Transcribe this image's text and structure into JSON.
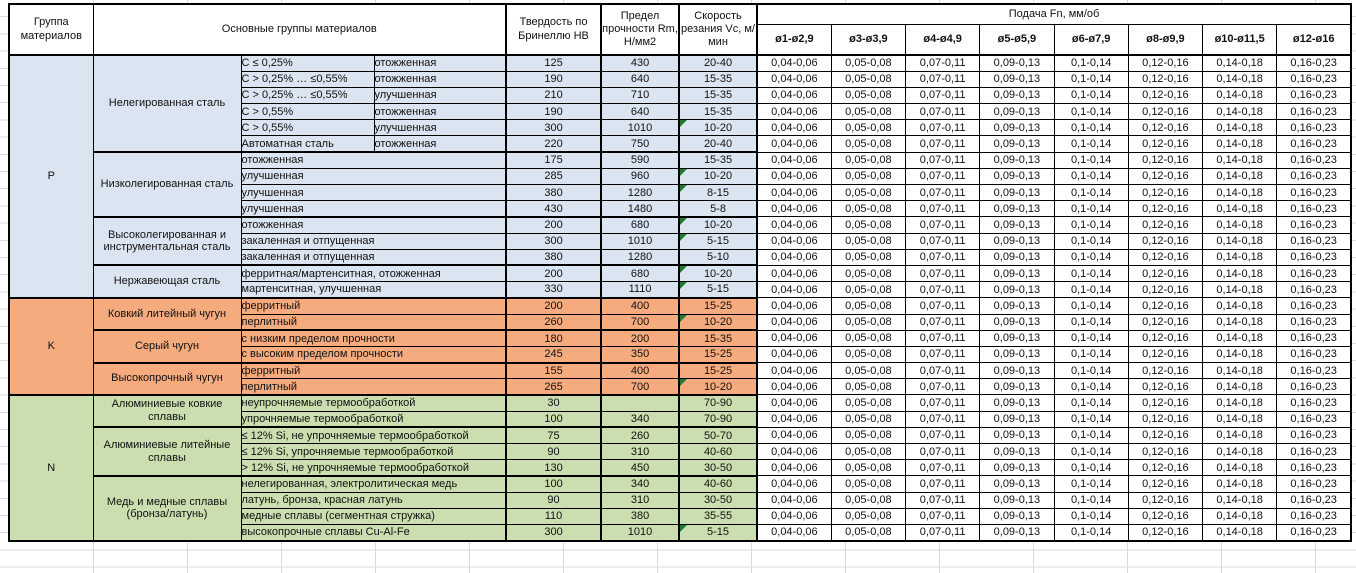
{
  "colors": {
    "section_blue": "#DBE5F1",
    "section_orange": "#F5AB7E",
    "section_green": "#CADEB0",
    "note_triangle": "#1E7B34",
    "grid_border": "#000000",
    "sheet_gridline": "#D9D9D9"
  },
  "table": {
    "header": {
      "group": "Группа материалов",
      "main_groups": "Основные группы материалов",
      "hardness": "Твердость по Бринеллю НВ",
      "strength": "Предел прочности Rm, Н/мм2",
      "speed": "Скорость резания Vc, м/мин",
      "feed": "Подача Fn, мм/об",
      "feed_cols": [
        "ø1-ø2,9",
        "ø3-ø3,9",
        "ø4-ø4,9",
        "ø5-ø5,9",
        "ø6-ø7,9",
        "ø8-ø9,9",
        "ø10-ø11,5",
        "ø12-ø16"
      ]
    },
    "feed_values": [
      "0,04-0,06",
      "0,05-0,08",
      "0,07-0,11",
      "0,09-0,13",
      "0,1-0,14",
      "0,12-0,16",
      "0,14-0,18",
      "0,16-0,23"
    ],
    "sections": [
      {
        "group": "P",
        "color": "#DBE5F1",
        "blocks": [
          {
            "name": "Нелегированная сталь",
            "rows": [
              {
                "m": "C ≤ 0,25%",
                "m2": "отожженная",
                "hb": "125",
                "rm": "430",
                "vc": "20-40",
                "note": false
              },
              {
                "m": "C > 0,25% … ≤0,55%",
                "m2": "отожженная",
                "hb": "190",
                "rm": "640",
                "vc": "15-35",
                "note": false
              },
              {
                "m": "C > 0,25% … ≤0,55%",
                "m2": "улучшенная",
                "hb": "210",
                "rm": "710",
                "vc": "15-35",
                "note": false
              },
              {
                "m": "C > 0,55%",
                "m2": "отожженная",
                "hb": "190",
                "rm": "640",
                "vc": "15-35",
                "note": false
              },
              {
                "m": "C > 0,55%",
                "m2": "улучшенная",
                "hb": "300",
                "rm": "1010",
                "vc": "10-20",
                "note": true
              },
              {
                "m": "Автоматная сталь",
                "m2": "отожженная",
                "hb": "220",
                "rm": "750",
                "vc": "20-40",
                "note": false
              }
            ]
          },
          {
            "name": "Низколегированная сталь",
            "rows": [
              {
                "m": "отожженная",
                "hb": "175",
                "rm": "590",
                "vc": "15-35",
                "note": false
              },
              {
                "m": "улучшенная",
                "hb": "285",
                "rm": "960",
                "vc": "10-20",
                "note": true
              },
              {
                "m": "улучшенная",
                "hb": "380",
                "rm": "1280",
                "vc": "8-15",
                "note": true
              },
              {
                "m": "улучшенная",
                "hb": "430",
                "rm": "1480",
                "vc": "5-8",
                "note": false
              }
            ]
          },
          {
            "name": "Высоколегированная и инструментальная сталь",
            "rows": [
              {
                "m": "отожженная",
                "hb": "200",
                "rm": "680",
                "vc": "10-20",
                "note": true
              },
              {
                "m": "закаленная и отпущенная",
                "hb": "300",
                "rm": "1010",
                "vc": "5-15",
                "note": true
              },
              {
                "m": "закаленная и отпущенная",
                "hb": "380",
                "rm": "1280",
                "vc": "5-10",
                "note": false
              }
            ]
          },
          {
            "name": "Нержавеющая сталь",
            "rows": [
              {
                "m": "ферритная/мартенситная, отожженная",
                "hb": "200",
                "rm": "680",
                "vc": "10-20",
                "note": true
              },
              {
                "m": "мартенситная, улучшенная",
                "hb": "330",
                "rm": "1110",
                "vc": "5-15",
                "note": true
              }
            ]
          }
        ]
      },
      {
        "group": "K",
        "color": "#F5AB7E",
        "blocks": [
          {
            "name": "Ковкий литейный чугун",
            "rows": [
              {
                "m": "ферритный",
                "hb": "200",
                "rm": "400",
                "vc": "15-25",
                "note": false
              },
              {
                "m": "перлитный",
                "hb": "260",
                "rm": "700",
                "vc": "10-20",
                "note": true
              }
            ]
          },
          {
            "name": "Серый чугун",
            "rows": [
              {
                "m": "с низким пределом прочности",
                "hb": "180",
                "rm": "200",
                "vc": "15-35",
                "note": false
              },
              {
                "m": "с высоким пределом прочности",
                "hb": "245",
                "rm": "350",
                "vc": "15-25",
                "note": false
              }
            ]
          },
          {
            "name": "Высокопрочный чугун",
            "rows": [
              {
                "m": "ферритный",
                "hb": "155",
                "rm": "400",
                "vc": "15-25",
                "note": false
              },
              {
                "m": "перлитный",
                "hb": "265",
                "rm": "700",
                "vc": "10-20",
                "note": true
              }
            ]
          }
        ]
      },
      {
        "group": "N",
        "color": "#CADEB0",
        "blocks": [
          {
            "name": "Алюминиевые ковкие сплавы",
            "rows": [
              {
                "m": "неупрочняемые термообработкой",
                "hb": "30",
                "rm": "",
                "vc": "70-90",
                "note": false
              },
              {
                "m": "упрочняемые термообработкой",
                "hb": "100",
                "rm": "340",
                "vc": "70-90",
                "note": false
              }
            ]
          },
          {
            "name": "Алюминиевые литейные сплавы",
            "rows": [
              {
                "m": "≤ 12% Si, не упрочняемые термообработкой",
                "hb": "75",
                "rm": "260",
                "vc": "50-70",
                "note": false
              },
              {
                "m": "≤ 12% Si, упрочняемые термообработкой",
                "hb": "90",
                "rm": "310",
                "vc": "40-60",
                "note": false
              },
              {
                "m": "> 12% Si, не упрочняемые термообработкой",
                "hb": "130",
                "rm": "450",
                "vc": "30-50",
                "note": false
              }
            ]
          },
          {
            "name": "Медь и медные сплавы (бронза/латунь)",
            "rows": [
              {
                "m": "нелегированная, электролитическая медь",
                "hb": "100",
                "rm": "340",
                "vc": "40-60",
                "note": false
              },
              {
                "m": "латунь, бронза, красная латунь",
                "hb": "90",
                "rm": "310",
                "vc": "30-50",
                "note": false
              },
              {
                "m": "медные сплавы (сегментная стружка)",
                "hb": "110",
                "rm": "380",
                "vc": "35-55",
                "note": false
              },
              {
                "m": "высокопрочные сплавы Cu-Al-Fe",
                "hb": "300",
                "rm": "1010",
                "vc": "5-15",
                "note": true
              }
            ]
          }
        ]
      }
    ]
  }
}
